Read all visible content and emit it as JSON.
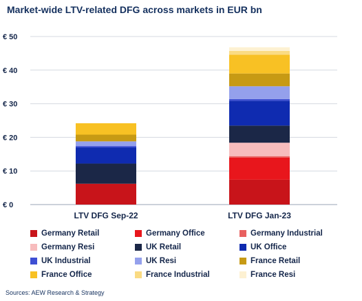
{
  "chart_data": {
    "type": "bar",
    "stacked": true,
    "title": "Market-wide LTV-related DFG across markets in EUR bn",
    "categories": [
      "LTV DFG Sep-22",
      "LTV DFG Jan-23"
    ],
    "ylim": [
      0,
      50
    ],
    "yticks": [
      0,
      10,
      20,
      30,
      40,
      50
    ],
    "ytick_labels": [
      "€ 0",
      "€ 10",
      "€ 20",
      "€ 30",
      "€ 40",
      "€ 50"
    ],
    "grid": true,
    "legend_position": "bottom",
    "series": [
      {
        "name": "Germany Retail",
        "color": "#c8141a",
        "values": [
          6.2,
          7.4
        ]
      },
      {
        "name": "Germany Office",
        "color": "#e8161c",
        "values": [
          0.0,
          6.6
        ]
      },
      {
        "name": "Germany Industrial",
        "color": "#e8605f",
        "values": [
          0.0,
          0.4
        ]
      },
      {
        "name": "Germany Resi",
        "color": "#f7bcbd",
        "values": [
          0.0,
          4.0
        ]
      },
      {
        "name": "UK Retail",
        "color": "#1b2747",
        "values": [
          6.0,
          5.1
        ]
      },
      {
        "name": "UK Office",
        "color": "#0f2bb0",
        "values": [
          4.8,
          7.4
        ]
      },
      {
        "name": "UK Industrial",
        "color": "#3e4fd3",
        "values": [
          0.4,
          0.5
        ]
      },
      {
        "name": "UK Resi",
        "color": "#94a0ec",
        "values": [
          1.4,
          3.8
        ]
      },
      {
        "name": "France Retail",
        "color": "#c79a14",
        "values": [
          2.0,
          3.8
        ]
      },
      {
        "name": "France Office",
        "color": "#f8c124",
        "values": [
          3.4,
          5.6
        ]
      },
      {
        "name": "France Industrial",
        "color": "#fadb83",
        "values": [
          0.0,
          1.1
        ]
      },
      {
        "name": "France Resi",
        "color": "#fdf1d2",
        "values": [
          0.0,
          1.1
        ]
      }
    ]
  },
  "source": "Sources: AEW Research & Strategy"
}
